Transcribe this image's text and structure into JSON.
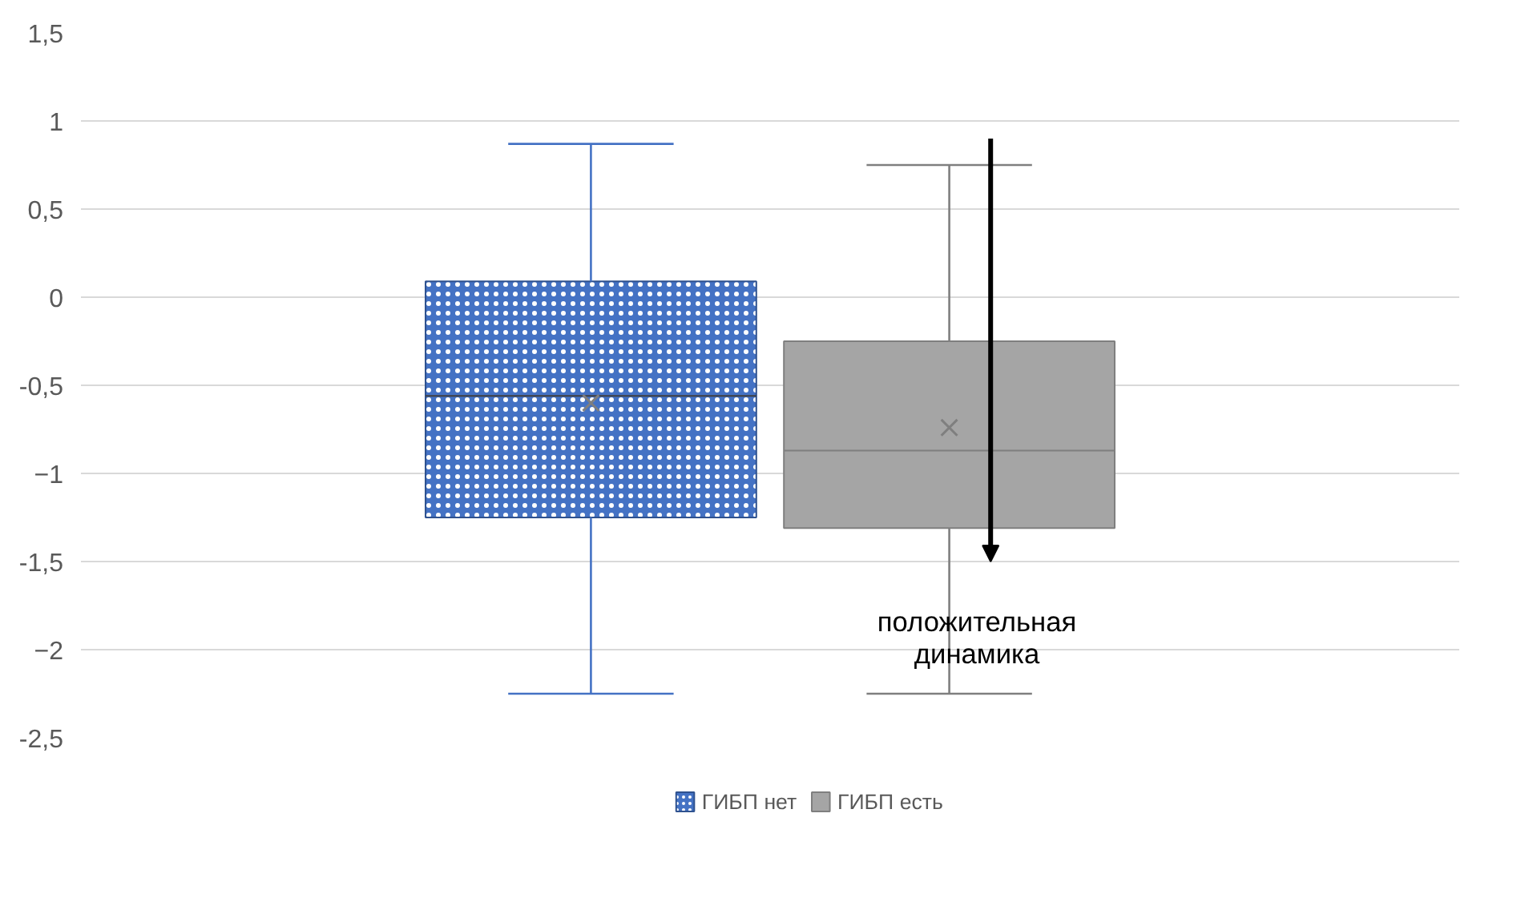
{
  "chart_data": {
    "type": "box",
    "categories": [
      null
    ],
    "series": [
      {
        "name": "ГИБП нет",
        "color": "#4472c4",
        "boxes": [
          {
            "low": -2.25,
            "q1": -1.25,
            "median": -0.56,
            "q3": 0.09,
            "high": 0.87,
            "mean": -0.6
          }
        ]
      },
      {
        "name": "ГИБП есть",
        "color": "#a5a5a5",
        "boxes": [
          {
            "low": -2.25,
            "q1": -1.31,
            "median": -0.87,
            "q3": -0.25,
            "high": 0.75,
            "mean": -0.74
          }
        ]
      }
    ],
    "ylim": [
      -2.5,
      1.5
    ],
    "yticks": [
      {
        "value": 1.5,
        "label": "1,5"
      },
      1,
      {
        "value": 0.5,
        "label": "0,5"
      },
      0,
      {
        "value": -0.5,
        "label": "-0,5"
      },
      -1,
      {
        "value": -1.5,
        "label": "-1,5"
      },
      -2,
      {
        "value": -2.5,
        "label": "-2,5"
      }
    ],
    "grid": "y",
    "legend": "bottom",
    "annotations": [
      "положительная динамика"
    ]
  }
}
